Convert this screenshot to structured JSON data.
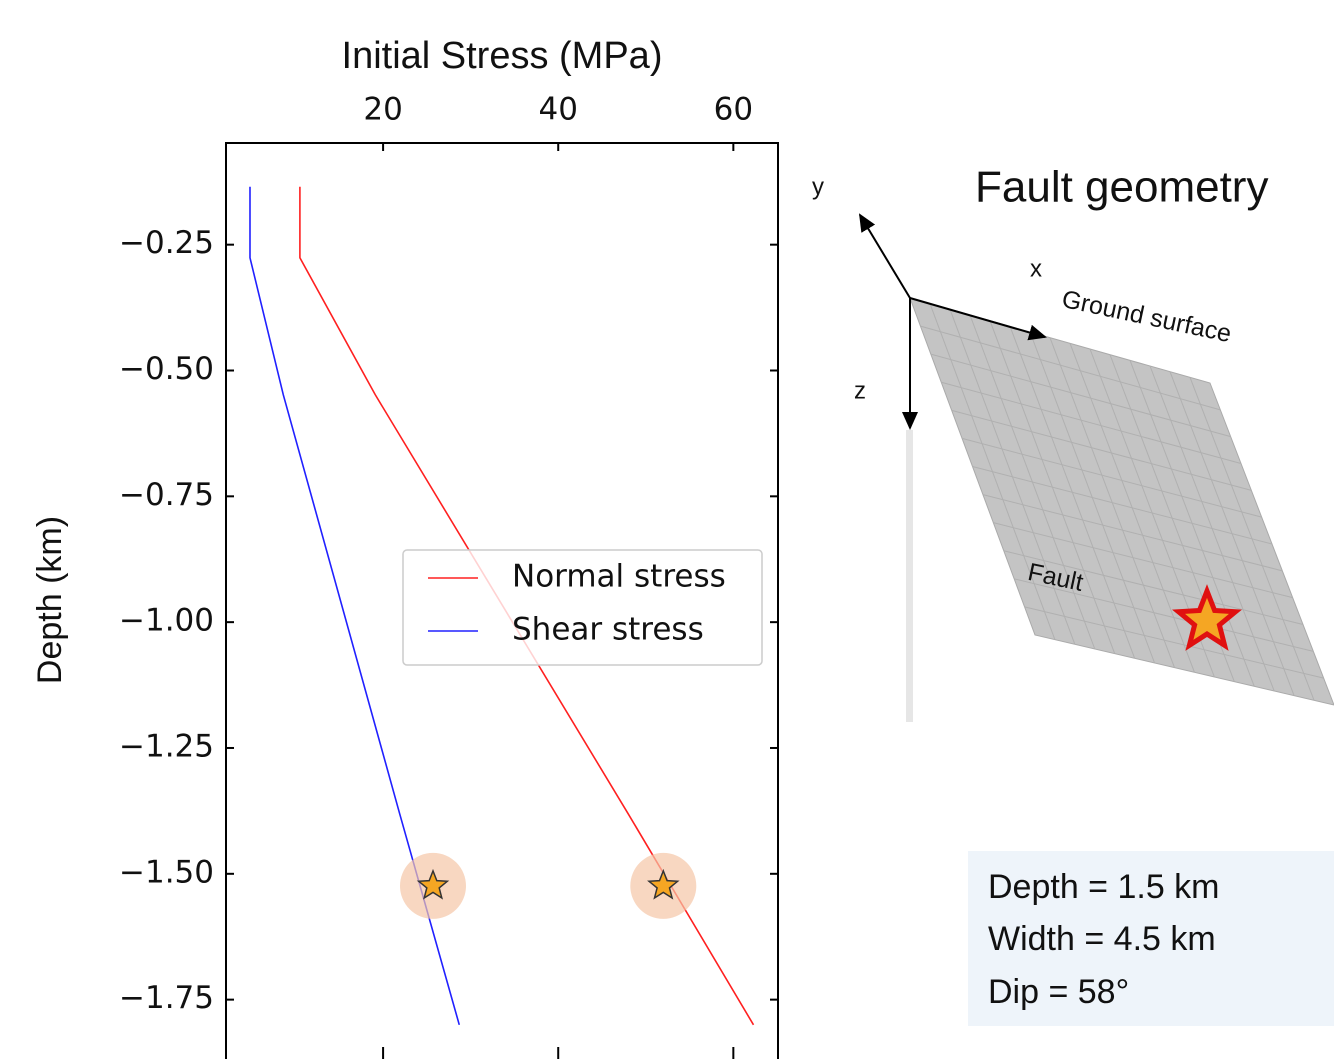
{
  "chart_data": {
    "type": "line",
    "x_label": "Initial Stress (MPa)",
    "y_label": "Depth (km)",
    "xlim": [
      2.06,
      65.1
    ],
    "ylim": [
      -1.86,
      -0.048
    ],
    "xticks": [
      20,
      40,
      60
    ],
    "yticks": [
      {
        "value": -0.25,
        "label": "−0.25"
      },
      {
        "value": -0.5,
        "label": "−0.50"
      },
      {
        "value": -0.75,
        "label": "−0.75"
      },
      {
        "value": -1.0,
        "label": "−1.00"
      },
      {
        "value": -1.25,
        "label": "−1.25"
      },
      {
        "value": -1.5,
        "label": "−1.50"
      },
      {
        "value": -1.75,
        "label": "−1.75"
      }
    ],
    "series": [
      {
        "name": "Normal stress",
        "color": "#ff2020",
        "x": [
          10.5,
          10.5,
          19.1,
          48.0,
          62.3
        ],
        "values": [
          -0.135,
          -0.276,
          -0.548,
          -1.381,
          -1.8
        ]
      },
      {
        "name": "Shear stress",
        "color": "#2020ff",
        "x": [
          4.8,
          4.8,
          8.6,
          21.9,
          28.7
        ],
        "values": [
          -0.135,
          -0.276,
          -0.548,
          -1.381,
          -1.8
        ]
      }
    ],
    "markers": {
      "x": [
        25.7,
        52.0
      ],
      "values": [
        -1.524,
        -1.524
      ],
      "color": "#f5a623"
    },
    "legend": "center right"
  },
  "diagram": {
    "title": "Fault geometry",
    "axis_y": "y",
    "axis_x": "x",
    "axis_z": "z",
    "surface_label": "Ground surface",
    "fault_label": "Fault",
    "info": [
      "Depth = 1.5 km",
      "Width = 4.5 km",
      "Dip = 58°"
    ]
  }
}
